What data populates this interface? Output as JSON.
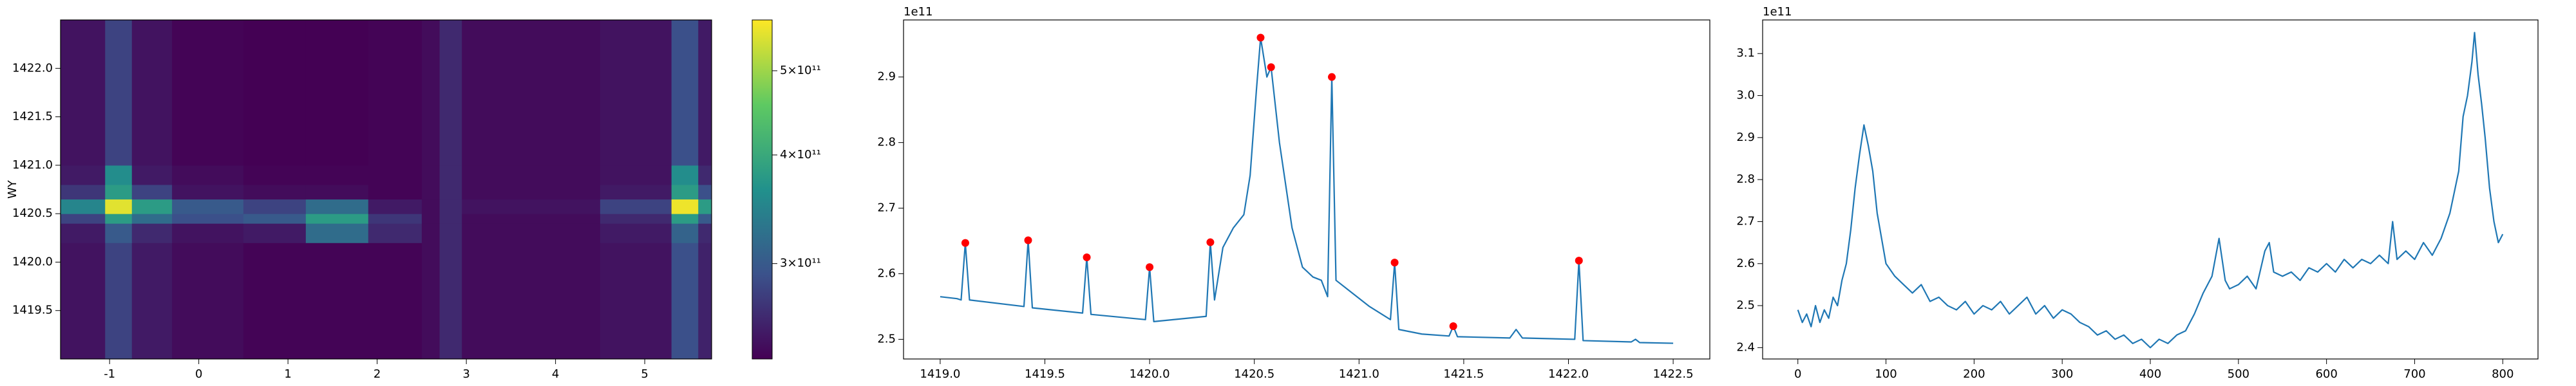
{
  "chart_data": [
    {
      "type": "heatmap",
      "ylabel": "WY",
      "colormap": "viridis",
      "x_edges": [
        -1.55,
        -1.05,
        -0.75,
        -0.3,
        0.5,
        1.2,
        1.9,
        2.5,
        2.7,
        2.95,
        4.5,
        5.3,
        5.6,
        5.75
      ],
      "y_edges": [
        1419.0,
        1420.2,
        1420.4,
        1420.5,
        1420.65,
        1420.8,
        1421.0,
        1422.5
      ],
      "z": [
        [
          245000000000.0,
          280000000000.0,
          250000000000.0,
          240000000000.0,
          235000000000.0,
          235000000000.0,
          235000000000.0,
          240000000000.0,
          260000000000.0,
          240000000000.0,
          245000000000.0,
          290000000000.0,
          255000000000.0
        ],
        [
          250000000000.0,
          300000000000.0,
          260000000000.0,
          245000000000.0,
          250000000000.0,
          320000000000.0,
          260000000000.0,
          240000000000.0,
          260000000000.0,
          240000000000.0,
          250000000000.0,
          310000000000.0,
          260000000000.0
        ],
        [
          280000000000.0,
          380000000000.0,
          320000000000.0,
          290000000000.0,
          300000000000.0,
          380000000000.0,
          270000000000.0,
          240000000000.0,
          260000000000.0,
          240000000000.0,
          260000000000.0,
          380000000000.0,
          300000000000.0
        ],
        [
          350000000000.0,
          550000000000.0,
          380000000000.0,
          300000000000.0,
          280000000000.0,
          320000000000.0,
          250000000000.0,
          240000000000.0,
          260000000000.0,
          245000000000.0,
          280000000000.0,
          560000000000.0,
          380000000000.0
        ],
        [
          270000000000.0,
          380000000000.0,
          280000000000.0,
          245000000000.0,
          240000000000.0,
          240000000000.0,
          235000000000.0,
          240000000000.0,
          260000000000.0,
          240000000000.0,
          250000000000.0,
          380000000000.0,
          290000000000.0
        ],
        [
          250000000000.0,
          360000000000.0,
          250000000000.0,
          240000000000.0,
          235000000000.0,
          235000000000.0,
          235000000000.0,
          240000000000.0,
          260000000000.0,
          240000000000.0,
          245000000000.0,
          360000000000.0,
          260000000000.0
        ],
        [
          245000000000.0,
          280000000000.0,
          245000000000.0,
          235000000000.0,
          233000000000.0,
          233000000000.0,
          235000000000.0,
          240000000000.0,
          260000000000.0,
          240000000000.0,
          245000000000.0,
          290000000000.0,
          250000000000.0
        ]
      ],
      "xlim": [
        -1.55,
        5.75
      ],
      "xticks": [
        -1,
        0,
        1,
        2,
        3,
        4,
        5
      ],
      "ylim": [
        1419.0,
        1422.5
      ],
      "yticks": [
        {
          "value": 1419.5,
          "label": "1419.5"
        },
        {
          "value": 1420,
          "label": "1420.0"
        },
        {
          "value": 1420.5,
          "label": "1420.5"
        },
        {
          "value": 1421,
          "label": "1421.0"
        },
        {
          "value": 1421.5,
          "label": "1421.5"
        },
        {
          "value": 1422,
          "label": "1422.0"
        }
      ],
      "colorbar": {
        "scale": "log",
        "lim": [
          233000000000.0,
          572000000000.0
        ],
        "ticks": [
          {
            "value": 300000000000.0,
            "label": "3×10¹¹"
          },
          {
            "value": 400000000000.0,
            "label": "4×10¹¹"
          },
          {
            "value": 500000000000.0,
            "label": "5×10¹¹"
          }
        ]
      }
    },
    {
      "type": "line",
      "offset_label": "1e11",
      "xlim": [
        1418.825,
        1422.675
      ],
      "ylim": [
        2.47,
        2.987
      ],
      "xticks": [
        {
          "value": 1419,
          "label": "1419.0"
        },
        1419.5,
        {
          "value": 1420,
          "label": "1420.0"
        },
        1420.5,
        {
          "value": 1421,
          "label": "1421.0"
        },
        1421.5,
        {
          "value": 1422,
          "label": "1422.0"
        },
        1422.5
      ],
      "yticks": [
        2.5,
        2.6,
        2.7,
        2.8,
        2.9
      ],
      "series": [
        {
          "kind": "line",
          "color": "#1f77b4",
          "x": [
            1419.0,
            1419.08,
            1419.1,
            1419.12,
            1419.14,
            1419.4,
            1419.42,
            1419.44,
            1419.68,
            1419.7,
            1419.72,
            1419.98,
            1420.0,
            1420.02,
            1420.27,
            1420.29,
            1420.31,
            1420.35,
            1420.4,
            1420.45,
            1420.48,
            1420.51,
            1420.53,
            1420.56,
            1420.58,
            1420.62,
            1420.68,
            1420.73,
            1420.78,
            1420.82,
            1420.85,
            1420.87,
            1420.89,
            1420.95,
            1421.05,
            1421.15,
            1421.17,
            1421.19,
            1421.3,
            1421.43,
            1421.45,
            1421.47,
            1421.72,
            1421.75,
            1421.78,
            1422.03,
            1422.05,
            1422.07,
            1422.3,
            1422.32,
            1422.34,
            1422.5
          ],
          "values": [
            2.565,
            2.562,
            2.56,
            2.647,
            2.56,
            2.55,
            2.651,
            2.548,
            2.54,
            2.625,
            2.538,
            2.53,
            2.61,
            2.527,
            2.535,
            2.648,
            2.56,
            2.64,
            2.67,
            2.69,
            2.75,
            2.88,
            2.96,
            2.9,
            2.915,
            2.8,
            2.67,
            2.61,
            2.595,
            2.59,
            2.565,
            2.9,
            2.59,
            2.575,
            2.55,
            2.53,
            2.617,
            2.515,
            2.508,
            2.505,
            2.52,
            2.504,
            2.502,
            2.515,
            2.502,
            2.5,
            2.62,
            2.498,
            2.496,
            2.5,
            2.495,
            2.494
          ]
        },
        {
          "kind": "scatter",
          "color": "#ff0000",
          "x": [
            1419.12,
            1419.42,
            1419.7,
            1420.0,
            1420.29,
            1420.53,
            1420.58,
            1420.87,
            1421.17,
            1421.45,
            1422.05
          ],
          "values": [
            2.647,
            2.651,
            2.625,
            2.61,
            2.648,
            2.96,
            2.915,
            2.9,
            2.617,
            2.52,
            2.62
          ]
        }
      ]
    },
    {
      "type": "line",
      "offset_label": "1e11",
      "xlim": [
        -40,
        840
      ],
      "ylim": [
        2.373,
        3.18
      ],
      "xticks": [
        0,
        100,
        200,
        300,
        400,
        500,
        600,
        700,
        800
      ],
      "yticks": [
        2.4,
        2.5,
        2.6,
        2.7,
        2.8,
        2.9,
        {
          "value": 3,
          "label": "3.0"
        },
        3.1
      ],
      "series": [
        {
          "kind": "line",
          "color": "#1f77b4",
          "x": [
            0,
            5,
            10,
            15,
            20,
            25,
            30,
            35,
            40,
            45,
            50,
            55,
            60,
            65,
            70,
            75,
            80,
            85,
            90,
            95,
            100,
            110,
            120,
            130,
            140,
            150,
            160,
            170,
            180,
            190,
            200,
            210,
            220,
            230,
            240,
            250,
            260,
            270,
            280,
            290,
            300,
            310,
            320,
            330,
            340,
            350,
            360,
            370,
            380,
            390,
            400,
            410,
            420,
            430,
            440,
            450,
            460,
            470,
            478,
            485,
            490,
            500,
            510,
            520,
            530,
            535,
            540,
            550,
            560,
            570,
            580,
            590,
            600,
            610,
            620,
            630,
            640,
            650,
            660,
            670,
            675,
            680,
            690,
            700,
            710,
            720,
            730,
            740,
            750,
            755,
            760,
            765,
            768,
            772,
            776,
            780,
            785,
            790,
            795,
            800
          ],
          "values": [
            2.49,
            2.46,
            2.48,
            2.45,
            2.5,
            2.46,
            2.49,
            2.47,
            2.52,
            2.5,
            2.56,
            2.6,
            2.68,
            2.78,
            2.86,
            2.93,
            2.88,
            2.82,
            2.72,
            2.66,
            2.6,
            2.57,
            2.55,
            2.53,
            2.55,
            2.51,
            2.52,
            2.5,
            2.49,
            2.51,
            2.48,
            2.5,
            2.49,
            2.51,
            2.48,
            2.5,
            2.52,
            2.48,
            2.5,
            2.47,
            2.49,
            2.48,
            2.46,
            2.45,
            2.43,
            2.44,
            2.42,
            2.43,
            2.41,
            2.42,
            2.4,
            2.42,
            2.41,
            2.43,
            2.44,
            2.48,
            2.53,
            2.57,
            2.66,
            2.56,
            2.54,
            2.55,
            2.57,
            2.54,
            2.63,
            2.65,
            2.58,
            2.57,
            2.58,
            2.56,
            2.59,
            2.58,
            2.6,
            2.58,
            2.61,
            2.59,
            2.61,
            2.6,
            2.62,
            2.6,
            2.7,
            2.61,
            2.63,
            2.61,
            2.65,
            2.62,
            2.66,
            2.72,
            2.82,
            2.95,
            3.0,
            3.08,
            3.15,
            3.05,
            2.98,
            2.9,
            2.78,
            2.7,
            2.65,
            2.67
          ]
        }
      ]
    }
  ]
}
